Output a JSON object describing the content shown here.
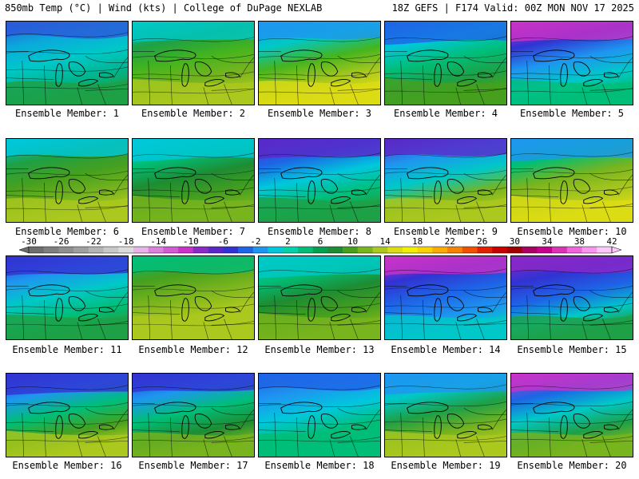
{
  "header": {
    "left": "850mb Temp (°C) | Wind (kts) | College of DuPage NEXLAB",
    "right": "18Z GEFS | F174 Valid: 00Z MON NOV 17 2025"
  },
  "colorbar": {
    "labels": [
      "-30",
      "-26",
      "-22",
      "-18",
      "-14",
      "-10",
      "-6",
      "-2",
      "2",
      "6",
      "10",
      "14",
      "18",
      "22",
      "26",
      "30",
      "34",
      "38",
      "42"
    ],
    "colors": [
      "#6e6e6e",
      "#7f7f7f",
      "#8f8f8f",
      "#a0a0a0",
      "#b4b4b4",
      "#c8c8c8",
      "#dcdcdc",
      "#e6b4e6",
      "#dc82dc",
      "#d25ad2",
      "#c832c8",
      "#8a28c8",
      "#5a28c8",
      "#3232d2",
      "#1e64e6",
      "#1e96f0",
      "#00c8dc",
      "#00d2aa",
      "#00be78",
      "#00a050",
      "#1e8c32",
      "#46a01e",
      "#78b41e",
      "#aac81e",
      "#dcdc14",
      "#f0f000",
      "#fad200",
      "#faaa00",
      "#f58200",
      "#f05000",
      "#e61e00",
      "#c80000",
      "#a00000",
      "#aa0064",
      "#c8008c",
      "#dc32b4",
      "#f064dc",
      "#fa96f0",
      "#ffc8fa"
    ]
  },
  "members": [
    {
      "label": "Ensemble Member: 1"
    },
    {
      "label": "Ensemble Member: 2"
    },
    {
      "label": "Ensemble Member: 3"
    },
    {
      "label": "Ensemble Member: 4"
    },
    {
      "label": "Ensemble Member: 5"
    },
    {
      "label": "Ensemble Member: 6"
    },
    {
      "label": "Ensemble Member: 7"
    },
    {
      "label": "Ensemble Member: 8"
    },
    {
      "label": "Ensemble Member: 9"
    },
    {
      "label": "Ensemble Member: 10"
    },
    {
      "label": "Ensemble Member: 11"
    },
    {
      "label": "Ensemble Member: 12"
    },
    {
      "label": "Ensemble Member: 13"
    },
    {
      "label": "Ensemble Member: 14"
    },
    {
      "label": "Ensemble Member: 15"
    },
    {
      "label": "Ensemble Member: 16"
    },
    {
      "label": "Ensemble Member: 17"
    },
    {
      "label": "Ensemble Member: 18"
    },
    {
      "label": "Ensemble Member: 19"
    },
    {
      "label": "Ensemble Member: 20"
    }
  ]
}
